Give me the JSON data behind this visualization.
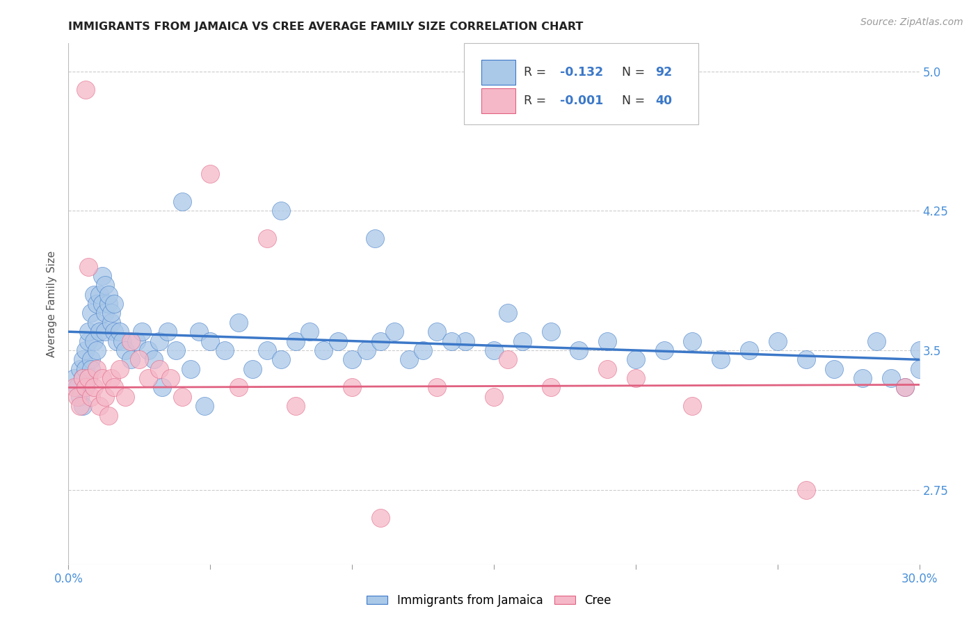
{
  "title": "IMMIGRANTS FROM JAMAICA VS CREE AVERAGE FAMILY SIZE CORRELATION CHART",
  "source": "Source: ZipAtlas.com",
  "ylabel": "Average Family Size",
  "xmin": 0.0,
  "xmax": 0.3,
  "ymin": 2.35,
  "ymax": 5.15,
  "yticks": [
    2.75,
    3.5,
    4.25,
    5.0
  ],
  "xticks": [
    0.0,
    0.05,
    0.1,
    0.15,
    0.2,
    0.25,
    0.3
  ],
  "background_color": "#ffffff",
  "grid_color": "#cccccc",
  "blue_fill": "#aac8e8",
  "pink_fill": "#f5b8c8",
  "blue_line_color": "#3c78c8",
  "pink_line_color": "#e06080",
  "title_color": "#222222",
  "axis_color": "#4a90d9",
  "series1_label": "Immigrants from Jamaica",
  "series2_label": "Cree",
  "R1": "-0.132",
  "N1": "92",
  "R2": "-0.001",
  "N2": "40",
  "blue_intercept": 3.6,
  "blue_slope": -0.5,
  "pink_intercept": 3.3,
  "pink_slope": 0.05,
  "blue_points_x": [
    0.002,
    0.003,
    0.004,
    0.004,
    0.005,
    0.005,
    0.005,
    0.006,
    0.006,
    0.006,
    0.007,
    0.007,
    0.007,
    0.008,
    0.008,
    0.008,
    0.009,
    0.009,
    0.01,
    0.01,
    0.01,
    0.011,
    0.011,
    0.012,
    0.012,
    0.013,
    0.013,
    0.013,
    0.014,
    0.014,
    0.015,
    0.015,
    0.016,
    0.016,
    0.017,
    0.018,
    0.019,
    0.02,
    0.022,
    0.024,
    0.026,
    0.028,
    0.03,
    0.032,
    0.035,
    0.038,
    0.04,
    0.043,
    0.046,
    0.05,
    0.055,
    0.06,
    0.065,
    0.07,
    0.075,
    0.08,
    0.085,
    0.09,
    0.095,
    0.1,
    0.105,
    0.11,
    0.115,
    0.12,
    0.125,
    0.13,
    0.14,
    0.15,
    0.16,
    0.17,
    0.18,
    0.19,
    0.2,
    0.21,
    0.22,
    0.23,
    0.24,
    0.25,
    0.26,
    0.27,
    0.28,
    0.285,
    0.29,
    0.295,
    0.3,
    0.3,
    0.155,
    0.135,
    0.108,
    0.075,
    0.048,
    0.033
  ],
  "blue_points_y": [
    3.35,
    3.3,
    3.4,
    3.25,
    3.45,
    3.2,
    3.35,
    3.5,
    3.3,
    3.4,
    3.55,
    3.35,
    3.6,
    3.7,
    3.45,
    3.4,
    3.8,
    3.55,
    3.65,
    3.5,
    3.75,
    3.6,
    3.8,
    3.75,
    3.9,
    3.7,
    3.85,
    3.6,
    3.75,
    3.8,
    3.65,
    3.7,
    3.75,
    3.6,
    3.55,
    3.6,
    3.55,
    3.5,
    3.45,
    3.55,
    3.6,
    3.5,
    3.45,
    3.55,
    3.6,
    3.5,
    4.3,
    3.4,
    3.6,
    3.55,
    3.5,
    3.65,
    3.4,
    3.5,
    3.45,
    3.55,
    3.6,
    3.5,
    3.55,
    3.45,
    3.5,
    3.55,
    3.6,
    3.45,
    3.5,
    3.6,
    3.55,
    3.5,
    3.55,
    3.6,
    3.5,
    3.55,
    3.45,
    3.5,
    3.55,
    3.45,
    3.5,
    3.55,
    3.45,
    3.4,
    3.35,
    3.55,
    3.35,
    3.3,
    3.4,
    3.5,
    3.7,
    3.55,
    4.1,
    4.25,
    3.2,
    3.3
  ],
  "pink_points_x": [
    0.002,
    0.003,
    0.004,
    0.005,
    0.006,
    0.006,
    0.007,
    0.007,
    0.008,
    0.009,
    0.01,
    0.011,
    0.012,
    0.013,
    0.014,
    0.015,
    0.016,
    0.018,
    0.02,
    0.022,
    0.025,
    0.028,
    0.032,
    0.036,
    0.04,
    0.05,
    0.06,
    0.07,
    0.08,
    0.1,
    0.11,
    0.13,
    0.15,
    0.155,
    0.17,
    0.19,
    0.2,
    0.22,
    0.26,
    0.295
  ],
  "pink_points_y": [
    3.3,
    3.25,
    3.2,
    3.35,
    4.9,
    3.3,
    3.35,
    3.95,
    3.25,
    3.3,
    3.4,
    3.2,
    3.35,
    3.25,
    3.15,
    3.35,
    3.3,
    3.4,
    3.25,
    3.55,
    3.45,
    3.35,
    3.4,
    3.35,
    3.25,
    4.45,
    3.3,
    4.1,
    3.2,
    3.3,
    2.6,
    3.3,
    3.25,
    3.45,
    3.3,
    3.4,
    3.35,
    3.2,
    2.75,
    3.3
  ]
}
